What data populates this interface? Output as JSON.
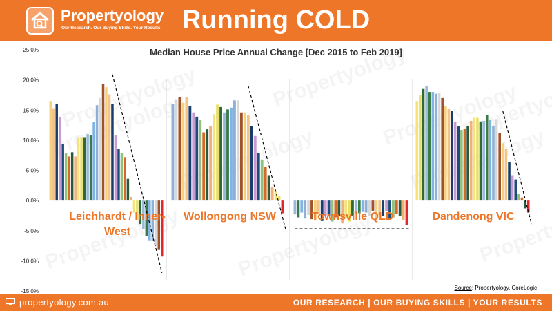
{
  "header": {
    "brand": "Propertyology",
    "tagline": "Our Research. Our Buying Skills. Your Results",
    "title": "Running COLD"
  },
  "footer": {
    "url": "propertyology.com.au",
    "tagline": "OUR RESEARCH | OUR BUYING SKILLS | YOUR RESULTS"
  },
  "source": {
    "label": "Source",
    "text": ": Propertyology, CoreLogic"
  },
  "watermark": "Propertyology",
  "colors": {
    "brand": "#ee7629",
    "trend_line": "#000000",
    "last_bar": "#e3262b",
    "region_label": "#ee7629"
  },
  "chart_data": {
    "type": "bar",
    "title": "Median House Price Annual Change [Dec 2015 to Feb 2019]",
    "y_ticks": [
      "25.0%",
      "20.0%",
      "15.0%",
      "10.0%",
      "5.0%",
      "0.0%",
      "-5.0%",
      "-10.0%",
      "-15.0%"
    ],
    "ylim": [
      -15,
      25
    ],
    "grid": false,
    "series": [
      {
        "name": "Leichhardt / Inner-West",
        "label_lines": [
          "Leichhardt / Inner-",
          "West"
        ],
        "values": [
          16.5,
          15.3,
          16.0,
          13.8,
          9.4,
          7.8,
          7.3,
          8.0,
          7.3,
          10.5,
          10.5,
          10.5,
          11.0,
          10.8,
          13.0,
          15.8,
          17.0,
          19.3,
          18.8,
          17.6,
          16.0,
          10.8,
          8.6,
          7.8,
          7.2,
          3.6,
          0.6,
          -2.0,
          -3.2,
          -3.9,
          -4.8,
          -5.9,
          -6.6,
          -6.7,
          -7.6,
          -8.2,
          -9.3
        ]
      },
      {
        "name": "Wollongong NSW",
        "label_lines": [
          "Wollongong NSW"
        ],
        "values": [
          16.0,
          16.8,
          17.2,
          16.2,
          17.2,
          15.6,
          14.6,
          13.9,
          13.3,
          11.3,
          11.8,
          12.3,
          14.3,
          15.9,
          15.5,
          14.6,
          15.1,
          15.4,
          16.6,
          16.6,
          14.6,
          14.6,
          14.1,
          12.3,
          10.7,
          7.9,
          6.8,
          5.6,
          4.2,
          2.3,
          1.6,
          0.7,
          -2.1
        ]
      },
      {
        "name": "Townsville QLD",
        "label_lines": [
          "Townsville QLD"
        ],
        "values": [
          -2.3,
          -2.8,
          -2.0,
          -3.0,
          -2.4,
          -3.1,
          -3.3,
          -2.3,
          -3.4,
          -2.5,
          -2.6,
          -3.5,
          -2.8,
          -2.6,
          -3.8,
          -3.0,
          -3.5,
          -2.5,
          -2.3,
          -2.1,
          -1.9,
          -2.0,
          -2.6,
          -1.7,
          -3.0,
          -2.4,
          -2.6,
          -1.7,
          -3.3,
          -2.8,
          -2.2,
          -2.5,
          -3.3,
          -4.1
        ]
      },
      {
        "name": "Dandenong VIC",
        "label_lines": [
          "Dandenong VIC"
        ],
        "values": [
          16.5,
          17.5,
          18.5,
          19.0,
          18.0,
          18.0,
          17.7,
          17.9,
          17.0,
          15.6,
          15.2,
          14.8,
          13.1,
          12.3,
          11.7,
          11.9,
          12.4,
          13.2,
          13.7,
          13.7,
          13.1,
          13.2,
          14.2,
          13.4,
          12.4,
          13.5,
          11.2,
          9.5,
          8.6,
          6.4,
          4.2,
          3.5,
          1.1,
          0.5,
          -1.3,
          -2.0
        ]
      }
    ],
    "annotations": [
      {
        "type": "dashed-trend",
        "series": "Leichhardt / Inner-West",
        "from": [
          20,
          20.9
        ],
        "to": [
          36,
          -12.0
        ]
      },
      {
        "type": "dashed-trend",
        "series": "Wollongong NSW",
        "from": [
          22,
          19.0
        ],
        "to": [
          33,
          -5.0
        ]
      },
      {
        "type": "dashed-trend",
        "series": "Townsville QLD",
        "from": [
          0,
          -4.7
        ],
        "to": [
          34,
          -4.7
        ]
      },
      {
        "type": "dashed-trend",
        "series": "Dandenong VIC",
        "from": [
          27,
          14.8
        ],
        "to": [
          36,
          -3.9
        ]
      }
    ]
  }
}
